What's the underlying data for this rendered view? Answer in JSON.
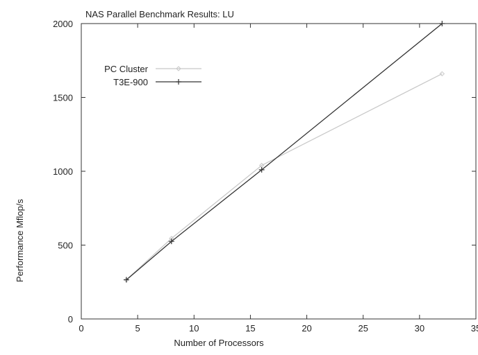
{
  "chart_data": {
    "type": "line",
    "title": "NAS Parallel Benchmark Results: LU",
    "xlabel": "Number of Processors",
    "ylabel": "Performance Mflop/s",
    "xlim": [
      0,
      35
    ],
    "ylim": [
      0,
      2000
    ],
    "xticks": [
      "0",
      "5",
      "10",
      "15",
      "20",
      "25",
      "30",
      "35"
    ],
    "yticks": [
      "0",
      "500",
      "1000",
      "1500",
      "2000"
    ],
    "grid": false,
    "legend_position": "top-left",
    "series": [
      {
        "name": "PC Cluster",
        "color": "#c8c8c8",
        "marker": "diamond",
        "x": [
          4,
          8,
          16,
          32
        ],
        "y": [
          265,
          545,
          1040,
          1660
        ]
      },
      {
        "name": "T3E-900",
        "color": "#333333",
        "marker": "plus",
        "x": [
          4,
          8,
          16,
          32
        ],
        "y": [
          265,
          525,
          1010,
          2000
        ]
      }
    ]
  }
}
